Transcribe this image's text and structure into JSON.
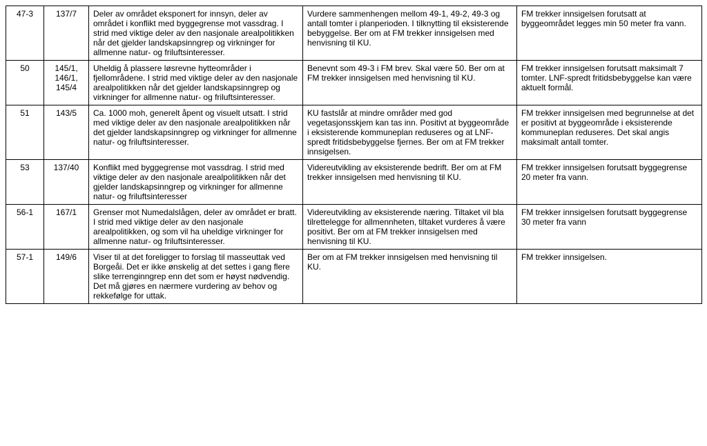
{
  "rows": [
    {
      "id": "47-3",
      "parcel": "137/7",
      "col3": "Deler av området eksponert for innsyn, deler av området i konflikt med byggegrense mot vassdrag. I strid med viktige deler av den nasjonale arealpolitikken når det gjelder landskapsinngrep og virkninger for allmenne natur- og friluftsinteresser.",
      "col4": "Vurdere sammenhengen mellom 49-1, 49-2, 49-3 og antall tomter i planperioden. I tilknytting til eksisterende bebyggelse. Ber om at FM trekker innsigelsen med henvisning til KU.",
      "col5": "FM trekker innsigelsen forutsatt at byggeområdet legges min 50 meter fra vann."
    },
    {
      "id": "50",
      "parcel": "145/1, 146/1, 145/4",
      "col3": "Uheldig å plassere løsrevne hytteområder i fjellområdene. I strid med viktige deler av den nasjonale arealpolitikken når det gjelder landskapsinngrep og virkninger for allmenne natur- og friluftsinteresser.",
      "col4": "Benevnt som 49-3 i FM brev. Skal være 50. Ber om at FM trekker innsigelsen med henvisning til KU.",
      "col5": "FM trekker innsigelsen forutsatt maksimalt 7 tomter. LNF-spredt fritidsbebyggelse kan være aktuelt formål."
    },
    {
      "id": "51",
      "parcel": "143/5",
      "col3": "Ca. 1000 moh, generelt åpent og visuelt utsatt. I strid med viktige deler av den nasjonale arealpolitikken når det gjelder landskapsinngrep og virkninger for allmenne natur- og friluftsinteresser.",
      "col4": "KU fastslår at mindre områder med god vegetasjonsskjem kan tas inn. Positivt at byggeområde i eksisterende kommuneplan reduseres og at LNF-spredt fritidsbebyggelse fjernes. Ber om at FM trekker innsigelsen.",
      "col5": "FM trekker innsigelsen med begrunnelse at det er positivt at byggeområde i eksisterende kommuneplan reduseres. Det skal angis maksimalt antall tomter."
    },
    {
      "id": "53",
      "parcel": "137/40",
      "col3": "Konflikt med byggegrense mot vassdrag. I strid med viktige deler av den nasjonale arealpolitikken når det gjelder landskapsinngrep og virkninger for allmenne natur- og friluftsinteresser",
      "col4": "Videreutvikling av eksisterende bedrift. Ber om at FM trekker innsigelsen med henvisning til KU.",
      "col5": "FM trekker innsigelsen forutsatt byggegrense 20 meter fra vann."
    },
    {
      "id": "56-1",
      "parcel": "167/1",
      "col3": "Grenser mot Numedalslågen, deler av området er bratt. I strid med viktige deler av den nasjonale arealpolitikken, og som vil ha uheldige virkninger for allmenne natur- og friluftsinteresser.",
      "col4": "Videreutvikling av eksisterende næring. Tiltaket vil bla tilrettelegge for allmennheten, tiltaket vurderes å være positivt. Ber om at FM trekker innsigelsen med henvisning til KU.",
      "col5": "FM trekker innsigelsen forutsatt byggegrense 30 meter fra vann"
    },
    {
      "id": "57-1",
      "parcel": "149/6",
      "col3": "Viser til at det foreligger to forslag til masseuttak ved Borgeåi. Det er ikke ønskelig at det settes i gang flere slike terrenginngrep enn det som er høyst nødvendig. Det må gjøres en nærmere vurdering av behov og rekkefølge for uttak.",
      "col4": "Ber om at FM trekker innsigelsen med henvisning til KU.",
      "col5": "FM trekker innsigelsen."
    }
  ]
}
